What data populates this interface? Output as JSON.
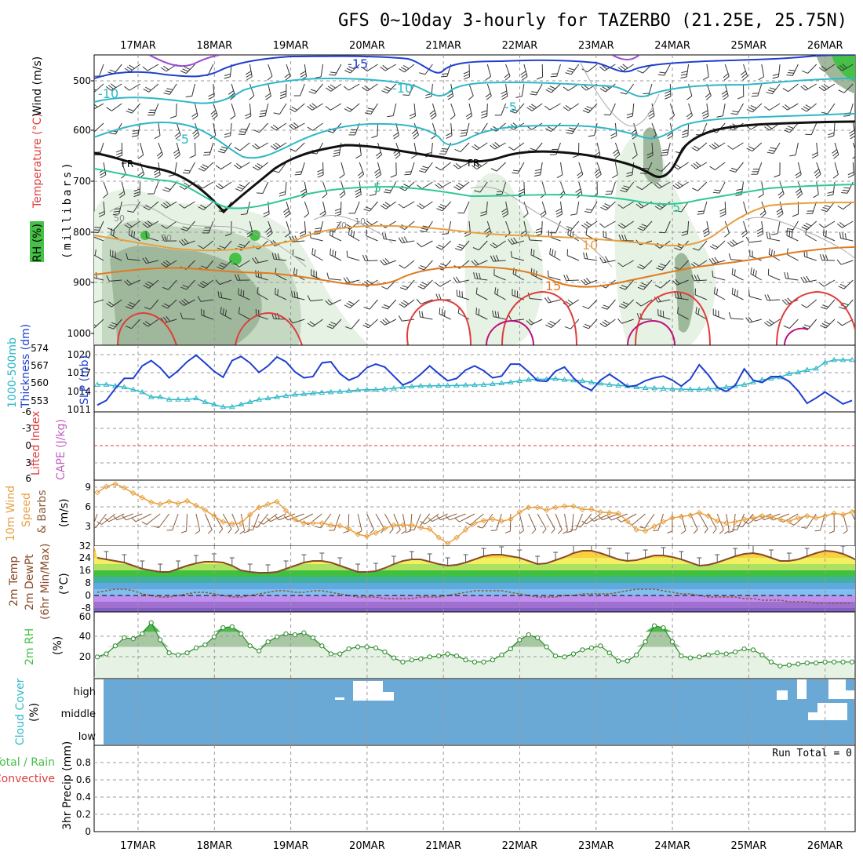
{
  "title": "GFS 0~10day 3-hourly for TAZERBO (21.25E, 25.75N)",
  "days": [
    "17MAR",
    "18MAR",
    "19MAR",
    "20MAR",
    "21MAR",
    "22MAR",
    "23MAR",
    "24MAR",
    "25MAR",
    "26MAR"
  ],
  "colors": {
    "blue": "#1f3fd0",
    "cyan": "#2fb8c8",
    "orange": "#e8a040",
    "green": "#46c046",
    "red": "#e03c3c",
    "cloud": "#6aa8d6",
    "brown": "#8a5a3a",
    "purple": "#9a4ad0"
  },
  "upper": {
    "labels": [
      "Wind (m/s)",
      "Temperature (°C)",
      "RH (%)",
      "(millibars)"
    ],
    "yticks": [
      "500",
      "600",
      "700",
      "800",
      "900",
      "1000"
    ],
    "contour_labels": [
      "-15",
      "-10",
      "-10",
      "-5",
      "-5",
      "FR",
      "FR",
      "5",
      "5",
      "10",
      "15",
      "30",
      "30",
      "50",
      "10"
    ]
  },
  "thickness": {
    "labels": [
      "1000-500mb",
      "Thickness (dm)",
      "SLP (mb)"
    ],
    "left_ticks": [
      "574",
      "567",
      "560",
      "553"
    ],
    "right_ticks": [
      "1020",
      "1017",
      "1014",
      "1011"
    ],
    "slp": [
      1012,
      1012.8,
      1014.8,
      1016.5,
      1016.5,
      1018.6,
      1019.5,
      1018.3,
      1016.6,
      1017.8,
      1019.3,
      1020.4,
      1019.1,
      1017.7,
      1016.7,
      1019.5,
      1020.2,
      1019.1,
      1017.5,
      1018.6,
      1020.1,
      1019.3,
      1017.6,
      1016.6,
      1016.8,
      1019.1,
      1019.3,
      1017.3,
      1016.2,
      1016.8,
      1018.3,
      1018.9,
      1018.4,
      1016.9,
      1015.4,
      1016,
      1017.2,
      1018.6,
      1017.3,
      1016.1,
      1016.5,
      1017.9,
      1018.6,
      1017.8,
      1016.6,
      1016.9,
      1018.9,
      1018.9,
      1017.6,
      1016.1,
      1016,
      1017.7,
      1018.4,
      1016.6,
      1015.2,
      1014.5,
      1016.2,
      1017.2,
      1016.2,
      1015.1,
      1015.3,
      1016.1,
      1016.6,
      1016.9,
      1016.2,
      1015.2,
      1016.4,
      1018.8,
      1017.1,
      1015,
      1014.3,
      1015.3,
      1018.1,
      1016.2,
      1015.8,
      1016.8,
      1016.8,
      1016,
      1014.4,
      1012.3,
      1013.2,
      1014.2,
      1013.2,
      1012.2,
      1012.8
    ],
    "thick": [
      561,
      561,
      560.5,
      560,
      559,
      558,
      556,
      556,
      555,
      555,
      555,
      555.5,
      554,
      553,
      552,
      552,
      553,
      554,
      555,
      555.5,
      556,
      556.5,
      557,
      557.2,
      557.5,
      557.8,
      558,
      558.2,
      558.5,
      558.8,
      559,
      559,
      559.3,
      559.5,
      560,
      560.3,
      560.5,
      560.5,
      560.6,
      560.6,
      560.7,
      560.8,
      560.9,
      561,
      561.3,
      561.6,
      562,
      562.5,
      563,
      563.2,
      563.2,
      563.4,
      563,
      562.8,
      562.5,
      562,
      561.5,
      561,
      560.7,
      560.5,
      560,
      559.7,
      559.6,
      559.4,
      559.3,
      559.2,
      559.1,
      559.1,
      559.3,
      559.5,
      560,
      560.5,
      561,
      562,
      563,
      563.5,
      564,
      565.5,
      566,
      567,
      567.5,
      570,
      571,
      571,
      571
    ]
  },
  "stability": {
    "labels": [
      "Lifted Index",
      "CAPE (J/kg)"
    ],
    "ticks": [
      "-6",
      "-3",
      "0",
      "3",
      "6"
    ]
  },
  "wind10": {
    "labels": [
      "10m Wind",
      "Speed",
      "& Barbs",
      "(m/s)"
    ],
    "ticks": [
      "9",
      "6",
      "3"
    ],
    "speed": [
      8.2,
      9.1,
      9.5,
      8.9,
      8.1,
      7.4,
      6.7,
      6.4,
      6.8,
      6.5,
      6.9,
      6.2,
      5.5,
      4.6,
      3.7,
      3.4,
      3.5,
      4.8,
      5.9,
      6.4,
      6.8,
      5.4,
      4.1,
      3.5,
      3.5,
      3.5,
      3.2,
      3.1,
      2.6,
      1.8,
      1.5,
      2,
      2.7,
      3.2,
      3.2,
      3.2,
      2.8,
      2.6,
      1.3,
      0.4,
      1.3,
      2.5,
      3.5,
      3.9,
      4.1,
      3.8,
      4.1,
      5.2,
      5.9,
      5.9,
      5.5,
      5.9,
      6.1,
      6.1,
      5.6,
      5.6,
      5.2,
      5.1,
      5,
      3.8,
      2.5,
      2.3,
      3,
      3.7,
      4.3,
      4.5,
      4.7,
      5.1,
      4.6,
      3.8,
      3.5,
      3.7,
      4.1,
      4.3,
      4.6,
      4.4,
      4.1,
      3.8,
      4.3,
      4.6,
      4.3,
      4.6,
      5,
      4.8,
      5.2,
      6.3
    ]
  },
  "temp2m": {
    "labels": [
      "2m Temp",
      "2m DewPt",
      "(6hr Min/Max)",
      "(°C)"
    ],
    "ticks": [
      "32",
      "24",
      "16",
      "8",
      "0",
      "-8"
    ],
    "temp": [
      24,
      23,
      22,
      21,
      19,
      17,
      16,
      15,
      15,
      17,
      19,
      20.5,
      21.5,
      21.5,
      21,
      19,
      16,
      15,
      14.5,
      14.5,
      15,
      17,
      19,
      21,
      22,
      22,
      21,
      19,
      17,
      15,
      15,
      15.5,
      17.5,
      20,
      22,
      23,
      23,
      21.5,
      20,
      19,
      19.5,
      21,
      23,
      25,
      26,
      26,
      25,
      24,
      22,
      20,
      20.5,
      22.5,
      24.5,
      27,
      28.5,
      28.5,
      27,
      25,
      23,
      22,
      22.5,
      24,
      25.5,
      25.5,
      24.5,
      23,
      21,
      19,
      19.5,
      21,
      23,
      25,
      26.5,
      27,
      26,
      24,
      22,
      22,
      23,
      25,
      27,
      28.5,
      28,
      26.5,
      24,
      21,
      20.5
    ],
    "dew": [
      2,
      3,
      4,
      4,
      3,
      1,
      0,
      -1,
      -1,
      0,
      1,
      2,
      2,
      1,
      0,
      -1,
      -1,
      0,
      1,
      2,
      3,
      3,
      2,
      2,
      3,
      3,
      2,
      1,
      0,
      -1,
      -1,
      -1,
      -2,
      -2,
      -2,
      -2,
      -1,
      -1,
      -1,
      0,
      1,
      2,
      3,
      3,
      3,
      3,
      2,
      1,
      0,
      -1,
      -1,
      -1,
      0,
      0,
      1,
      1,
      1,
      1,
      2,
      3,
      4,
      4,
      4,
      3,
      2,
      1,
      1,
      0,
      -1,
      -1,
      -1,
      -1,
      -2,
      -2,
      -3,
      -3,
      -3,
      -4,
      -4,
      -4,
      -5,
      -5,
      -5,
      -5,
      -5
    ]
  },
  "rh2m": {
    "labels": [
      "2m RH",
      "(%)"
    ],
    "ticks": [
      "60",
      "40",
      "20"
    ],
    "values": [
      20,
      23,
      31,
      39,
      38,
      43,
      54,
      37,
      24,
      22,
      24,
      29,
      32,
      40,
      49,
      50,
      43,
      31,
      26,
      35,
      40,
      43,
      42,
      44,
      39,
      31,
      23,
      23,
      28,
      30,
      30,
      29,
      25,
      19,
      15,
      17,
      18,
      20,
      21,
      23,
      21,
      17,
      15,
      15,
      17,
      22,
      28,
      37,
      42,
      39,
      30,
      21,
      20,
      23,
      27,
      29,
      31,
      24,
      16,
      16,
      22,
      35,
      51,
      49,
      35,
      21,
      19,
      20,
      22,
      24,
      23,
      25,
      28,
      27,
      22,
      15,
      11,
      12,
      13,
      14,
      14,
      15,
      15,
      15,
      15
    ]
  },
  "cloud": {
    "labels": [
      "Cloud Cover",
      "(%)"
    ],
    "levels": [
      "high",
      "middle",
      "low"
    ]
  },
  "precip": {
    "labels": [
      "Total / Rain",
      "Convective",
      "3hr Precip (mm)"
    ],
    "ticks": [
      "0.8",
      "0.6",
      "0.4",
      "0.2",
      "0"
    ],
    "run_total": "Run Total = 0"
  }
}
